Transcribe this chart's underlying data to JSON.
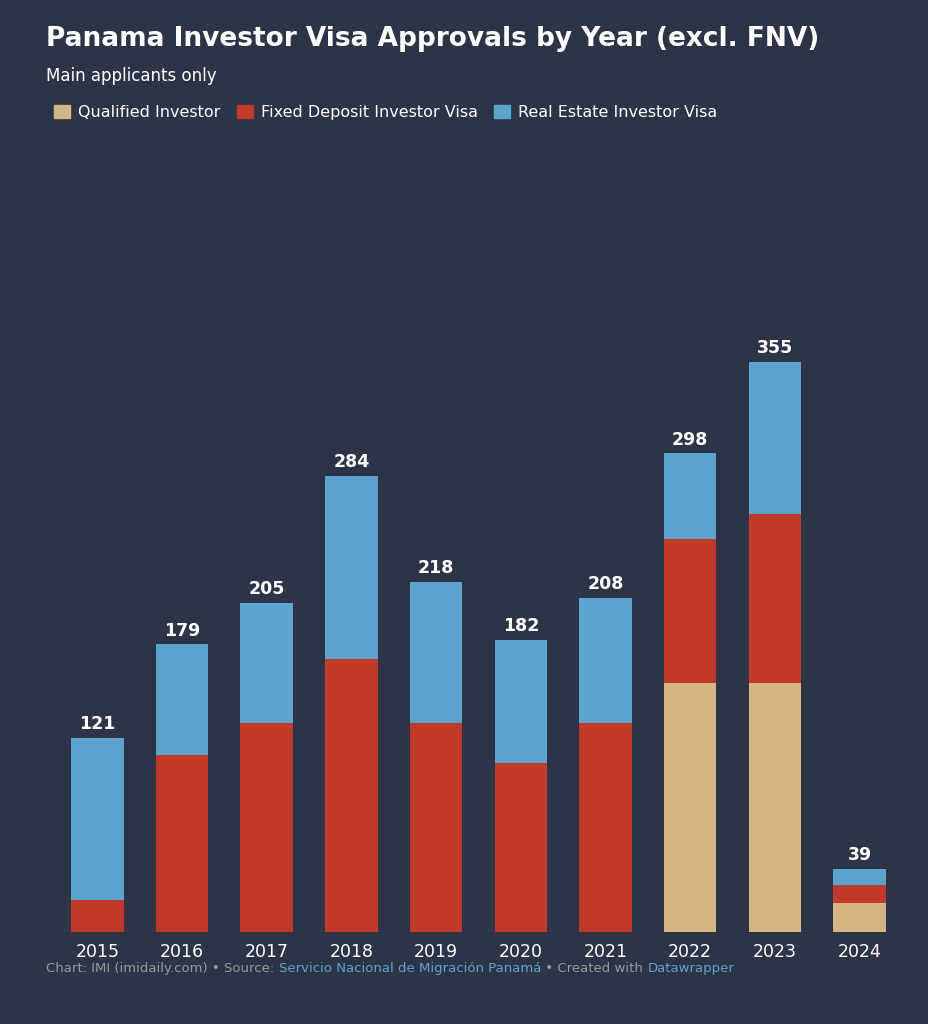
{
  "title": "Panama Investor Visa Approvals by Year (excl. FNV)",
  "subtitle": "Main applicants only",
  "years": [
    2015,
    2016,
    2017,
    2018,
    2019,
    2020,
    2021,
    2022,
    2023,
    2024
  ],
  "qualified_investor": [
    0,
    0,
    0,
    0,
    0,
    0,
    0,
    155,
    155,
    18
  ],
  "fixed_deposit": [
    20,
    110,
    130,
    170,
    130,
    105,
    130,
    90,
    105,
    11
  ],
  "real_estate": [
    101,
    69,
    75,
    114,
    88,
    77,
    78,
    53,
    95,
    10
  ],
  "totals": [
    121,
    179,
    205,
    284,
    218,
    182,
    208,
    298,
    355,
    39
  ],
  "color_qualified": "#D4B483",
  "color_fixed": "#C0392B",
  "color_real_estate": "#5BA4CF",
  "background_color": "#2E3447",
  "text_color": "#FFFFFF",
  "label_qualified": "Qualified Investor",
  "label_fixed": "Fixed Deposit Investor Visa",
  "label_real_estate": "Real Estate Investor Visa",
  "footer_prefix": "Chart: IMI (imidaily.com) • Source: ",
  "footer_source": "Servicio Nacional de Migración Panamá",
  "footer_middle": " • Created with ",
  "footer_tool": "Datawrapper",
  "footer_color_normal": "#999999",
  "footer_color_link": "#5BA4CF"
}
